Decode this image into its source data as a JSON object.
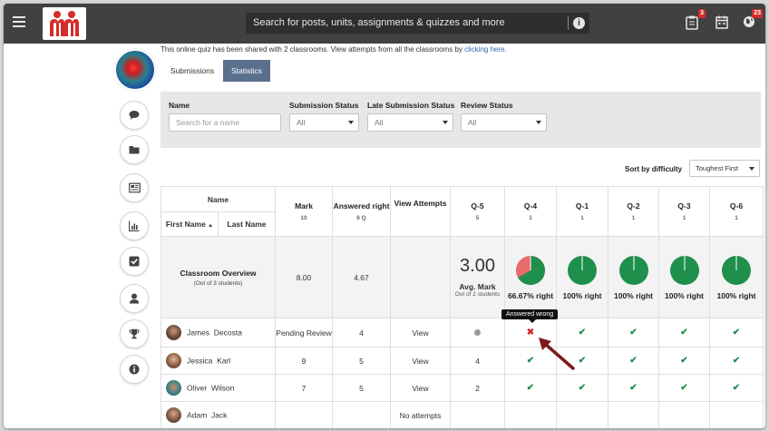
{
  "topbar": {
    "search_placeholder": "Search for posts, units, assignments & quizzes and more",
    "info_symbol": "i",
    "icons": [
      "menu-icon",
      "clipboard-icon",
      "calendar-icon",
      "globe-icon"
    ],
    "assignments_badge": "3",
    "notifications_badge": "23"
  },
  "colors": {
    "topbar": "#414141",
    "accent": "#5a6f8c",
    "green": "#1f8f4c",
    "red": "#d52c2c",
    "link": "#2a6ab3"
  },
  "share_note": {
    "text": "This online quiz has been shared with 2 classrooms. View attempts from all the classrooms by ",
    "link": "clicking here."
  },
  "tabs": [
    {
      "label": "Submissions",
      "active": false
    },
    {
      "label": "Statistics",
      "active": true
    }
  ],
  "sidebar_icons": [
    "comment-icon",
    "folder-icon",
    "newspaper-icon",
    "bar-chart-icon",
    "checkbox-icon",
    "user-icon",
    "trophy-icon",
    "info-icon"
  ],
  "filters": {
    "name_label": "Name",
    "name_placeholder": "Search for a name",
    "submission_status_label": "Submission Status",
    "submission_status_value": "All",
    "late_label": "Late Submission Status",
    "late_value": "All",
    "review_label": "Review Status",
    "review_value": "All"
  },
  "sort": {
    "label": "Sort by difficulty",
    "value": "Toughest First"
  },
  "table": {
    "name_header": "Name",
    "first_name_header": "First Name",
    "last_name_header": "Last Name",
    "mark_header": "Mark",
    "mark_sub": "10",
    "answered_header": "Answered right",
    "answered_sub": "6 Q",
    "view_header": "View Attempts",
    "questions": [
      {
        "label": "Q-5",
        "points": "5"
      },
      {
        "label": "Q-4",
        "points": "1"
      },
      {
        "label": "Q-1",
        "points": "1"
      },
      {
        "label": "Q-2",
        "points": "1"
      },
      {
        "label": "Q-3",
        "points": "1"
      },
      {
        "label": "Q-6",
        "points": "1"
      }
    ],
    "overview": {
      "title": "Classroom Overview",
      "subtitle": "(Out of 3 students)",
      "mark": "8.00",
      "answered": "4.67",
      "avg_value": "3.00",
      "avg_label": "Avg. Mark",
      "avg_sub": "Out of 2 students",
      "question_stats": [
        {
          "percent": "66.67% right",
          "fraction_right": 0.6667
        },
        {
          "percent": "100% right",
          "fraction_right": 1
        },
        {
          "percent": "100% right",
          "fraction_right": 1
        },
        {
          "percent": "100% right",
          "fraction_right": 1
        },
        {
          "percent": "100% right",
          "fraction_right": 1
        }
      ]
    },
    "students": [
      {
        "first": "James",
        "last": "Decosta",
        "mark": "Pending Review",
        "answered": "4",
        "view": "View",
        "q5": "dot",
        "answers": [
          "cross",
          "check",
          "check",
          "check",
          "check"
        ]
      },
      {
        "first": "Jessica",
        "last": "Karl",
        "mark": "9",
        "answered": "5",
        "view": "View",
        "q5": "4",
        "answers": [
          "check",
          "check",
          "check",
          "check",
          "check"
        ]
      },
      {
        "first": "Oliver",
        "last": "Wilson",
        "mark": "7",
        "answered": "5",
        "view": "View",
        "q5": "2",
        "answers": [
          "check",
          "check",
          "check",
          "check",
          "check"
        ]
      },
      {
        "first": "Adam",
        "last": "Jack",
        "mark": "",
        "answered": "",
        "view": "No attempts",
        "q5": "",
        "answers": [
          "",
          "",
          "",
          "",
          ""
        ]
      }
    ]
  },
  "tooltip": "Answered wrong",
  "symbols": {
    "check": "✔",
    "cross": "✖",
    "sort_up": "▲"
  }
}
